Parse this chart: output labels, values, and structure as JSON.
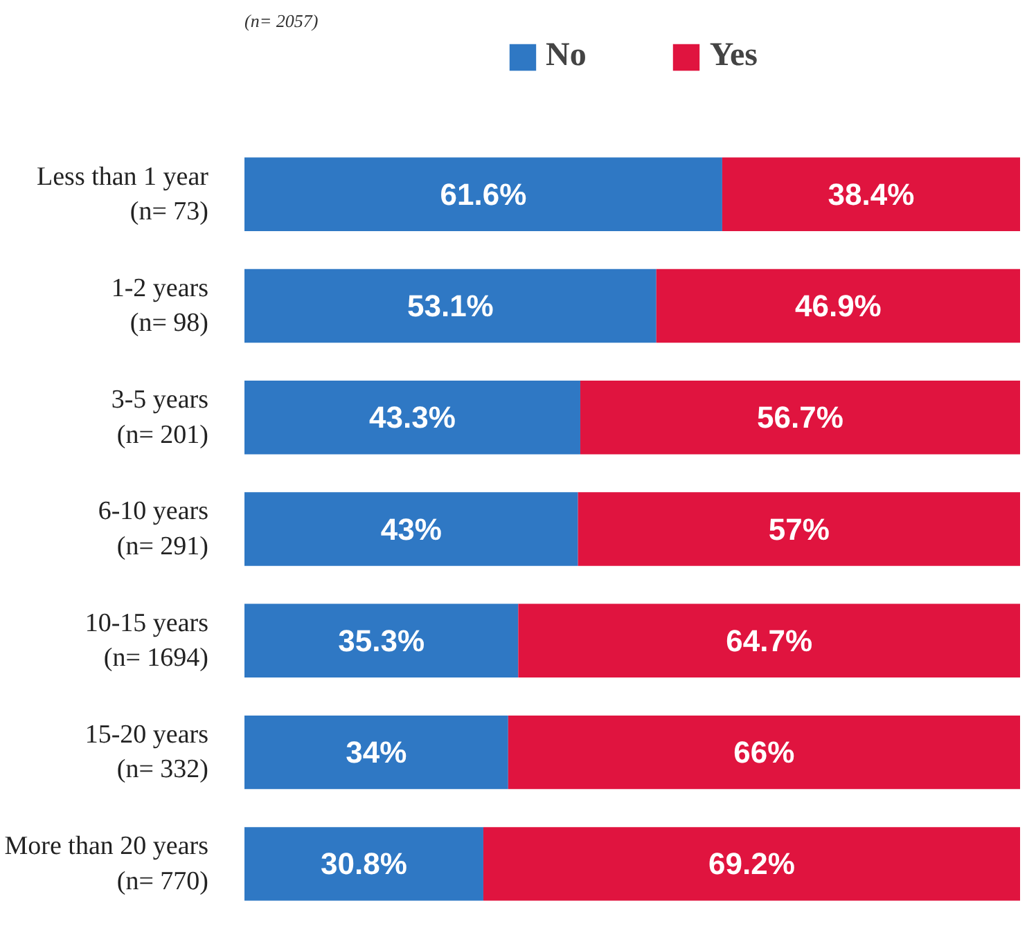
{
  "chart_data": {
    "type": "bar",
    "orientation": "horizontal",
    "stacked": true,
    "categories": [
      "Less than 1 year\n(n= 73)",
      "1-2 years\n(n= 98)",
      "3-5 years\n(n= 201)",
      "6-10 years\n(n= 291)",
      "10-15 years\n(n= 1694)",
      "15-20 years\n(n= 332)",
      "More than 20 years\n(n= 770)"
    ],
    "series": [
      {
        "name": "No",
        "color": "#2f78c4",
        "values": [
          61.6,
          53.1,
          43.3,
          43,
          35.3,
          34,
          30.8
        ],
        "value_labels": [
          "61.6%",
          "53.1%",
          "43.3%",
          "43%",
          "35.3%",
          "34%",
          "30.8%"
        ]
      },
      {
        "name": "Yes",
        "color": "#e0143f",
        "values": [
          38.4,
          46.9,
          56.7,
          57,
          64.7,
          66,
          69.2
        ],
        "value_labels": [
          "38.4%",
          "46.9%",
          "56.7%",
          "57%",
          "64.7%",
          "66%",
          "69.2%"
        ]
      }
    ],
    "xlim": [
      0,
      100
    ],
    "tick_labels": false,
    "legend": "top",
    "grid": false,
    "annotations": [
      "(n= 2057)"
    ]
  }
}
